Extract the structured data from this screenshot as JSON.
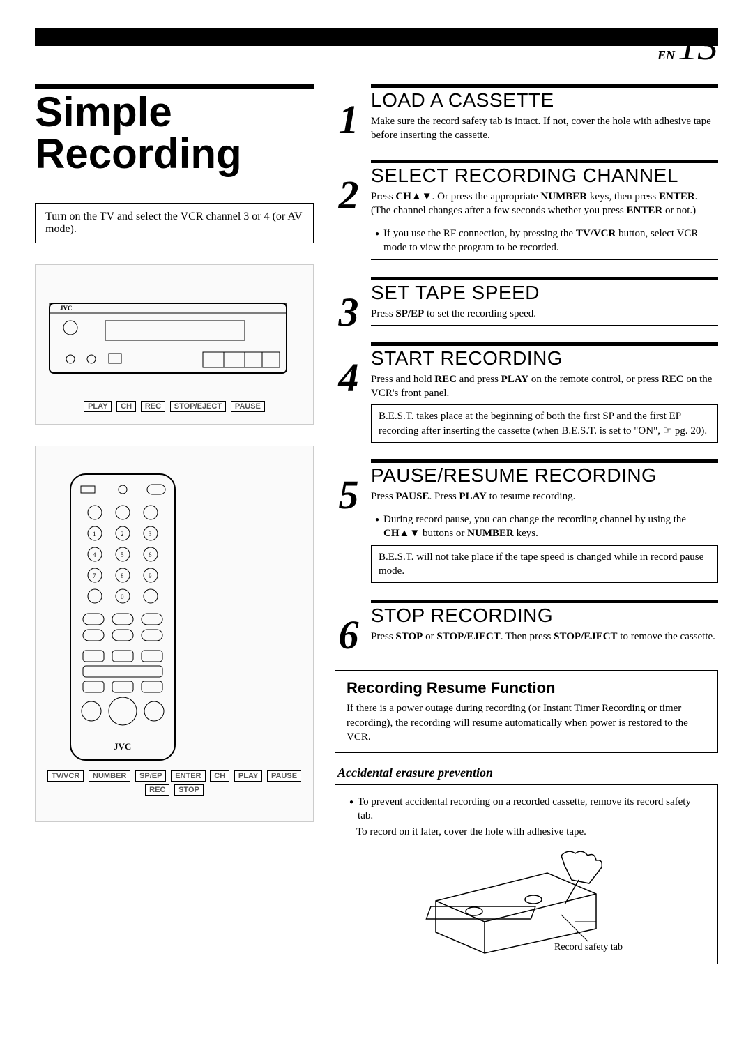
{
  "page": {
    "lang": "EN",
    "number": "13"
  },
  "title": "Simple Recording",
  "intro": "Turn on the TV and select the VCR channel 3 or 4 (or AV mode).",
  "vcr_labels": [
    "JVC",
    "PLAY",
    "CH",
    "REC",
    "STOP/EJECT",
    "PAUSE"
  ],
  "remote_labels": [
    "TV/VCR",
    "NUMBER",
    "SP/EP",
    "ENTER",
    "CH",
    "PLAY",
    "PAUSE",
    "REC",
    "STOP",
    "JVC"
  ],
  "steps": [
    {
      "num": "1",
      "title": "LOAD A CASSETTE",
      "text": "Make sure the record safety tab is intact. If not, cover the hole with adhesive tape before inserting the cassette."
    },
    {
      "num": "2",
      "title": "SELECT RECORDING CHANNEL",
      "text_html": "Press <strong class='key'>CH▲▼</strong>. Or press the appropriate <strong class='key'>NUMBER</strong> keys, then press <strong class='key'>ENTER</strong>. (The channel changes after a few seconds whether you press <strong class='key'>ENTER</strong> or not.)",
      "bullets_html": [
        "If you use the RF connection, by pressing the <strong class='key'>TV/VCR</strong> button, select VCR mode to view the program to be recorded."
      ]
    },
    {
      "num": "3",
      "title": "SET TAPE SPEED",
      "text_html": "Press <strong class='key'>SP/EP</strong> to set the recording speed."
    },
    {
      "num": "4",
      "title": "START RECORDING",
      "text_html": "Press and hold <strong class='key'>REC</strong> and press <strong class='key'>PLAY</strong> on the remote control, or press <strong class='key'>REC</strong> on the VCR's front panel.",
      "box": "B.E.S.T. takes place at the beginning of both the first SP and the first EP recording after inserting the cassette (when B.E.S.T. is set to \"ON\", ☞ pg. 20)."
    },
    {
      "num": "5",
      "title": "PAUSE/RESUME RECORDING",
      "text_html": "Press <strong class='key'>PAUSE</strong>. Press <strong class='key'>PLAY</strong> to resume recording.",
      "bullets_html": [
        "During record pause, you can change the recording channel by using the <strong class='key'>CH▲▼</strong> buttons or <strong class='key'>NUMBER</strong> keys."
      ],
      "box": "B.E.S.T. will not take place if the tape speed is changed while in record pause mode."
    },
    {
      "num": "6",
      "title": "STOP RECORDING",
      "text_html": "Press <strong class='key'>STOP</strong> or <strong class='key'>STOP/EJECT</strong>. Then press <strong class='key'>STOP/EJECT</strong> to remove the cassette."
    }
  ],
  "resume": {
    "title": "Recording Resume Function",
    "text": "If there is a power outage during recording (or Instant Timer Recording or timer recording), the recording will resume automatically when power is restored to the VCR."
  },
  "erasure": {
    "title": "Accidental erasure prevention",
    "bullet": "To prevent accidental recording on a recorded cassette, remove its record safety tab.",
    "line2": "To record on it later, cover the hole with adhesive tape.",
    "label": "Record safety tab"
  },
  "colors": {
    "text": "#000000",
    "bg": "#ffffff",
    "rule": "#000000"
  }
}
